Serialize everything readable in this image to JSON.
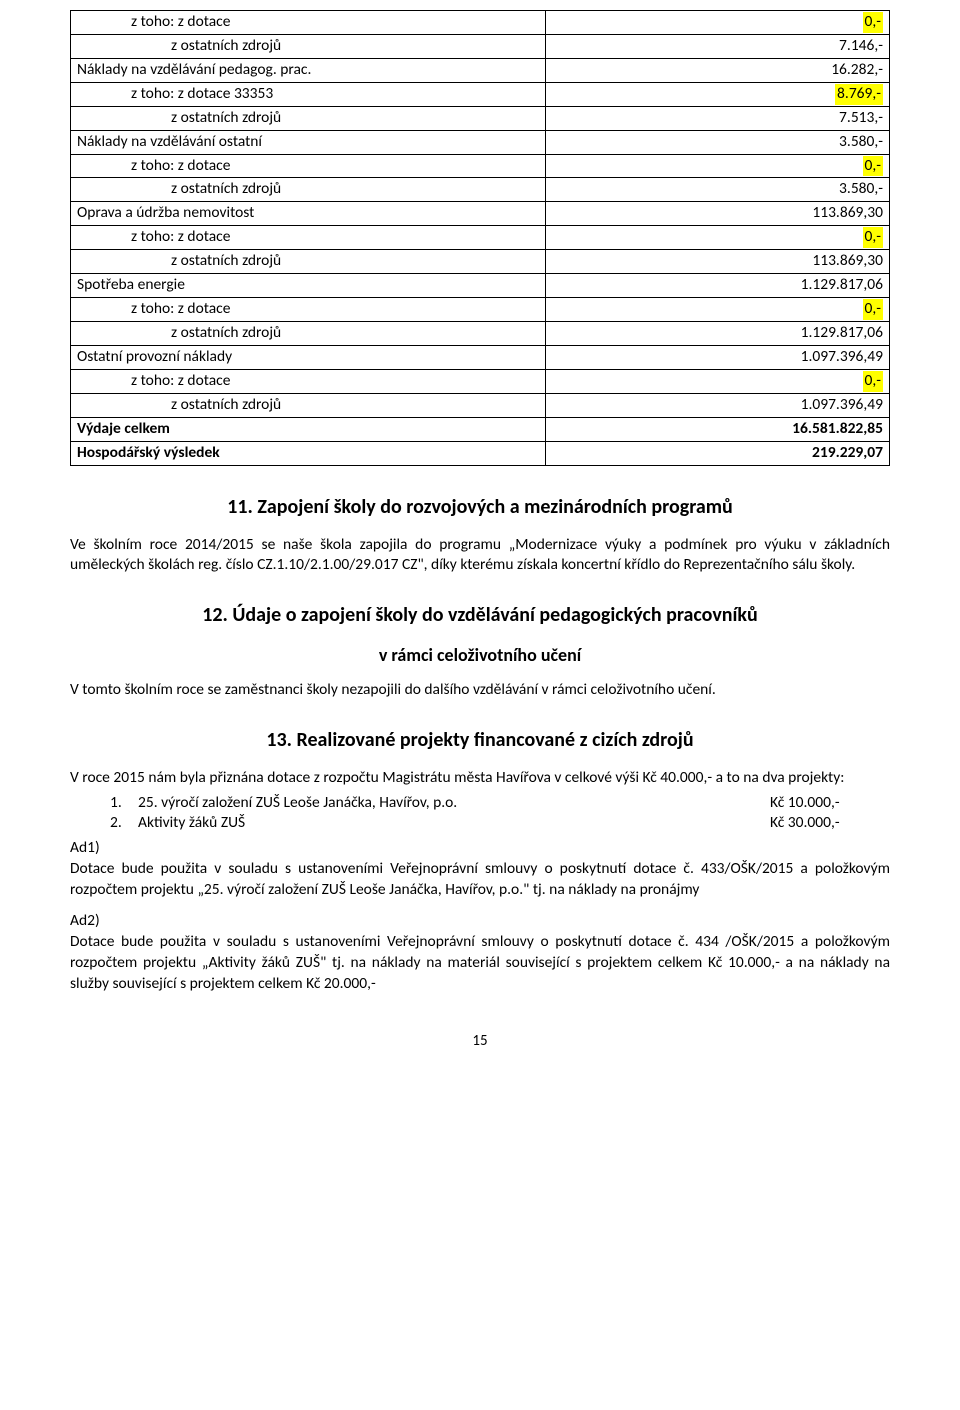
{
  "table": {
    "rows": [
      {
        "label": "z toho: z dotace",
        "value": "0,-",
        "indent": 1,
        "hl": true
      },
      {
        "label": "z ostatních zdrojů",
        "value": "7.146,-",
        "indent": 2
      },
      {
        "label": "Náklady na vzdělávání pedagog. prac.",
        "value": "16.282,-",
        "indent": 0
      },
      {
        "label": "z toho: z dotace 33353",
        "value": "8.769,-",
        "indent": 1,
        "hl": true
      },
      {
        "label": "z ostatních zdrojů",
        "value": "7.513,-",
        "indent": 2
      },
      {
        "label": "Náklady na vzdělávání ostatní",
        "value": "3.580,-",
        "indent": 0
      },
      {
        "label": "z toho: z dotace",
        "value": "0,-",
        "indent": 1,
        "hl": true
      },
      {
        "label": "z ostatních zdrojů",
        "value": "3.580,-",
        "indent": 2
      },
      {
        "label": "Oprava a údržba nemovitost",
        "value": "113.869,30",
        "indent": 0
      },
      {
        "label": "z toho: z dotace",
        "value": "0,-",
        "indent": 1,
        "hl": true
      },
      {
        "label": "z ostatních zdrojů",
        "value": "113.869,30",
        "indent": 2
      },
      {
        "label": "Spotřeba energie",
        "value": "1.129.817,06",
        "indent": 0
      },
      {
        "label": "z toho: z dotace",
        "value": "0,-",
        "indent": 1,
        "hl": true
      },
      {
        "label": "z ostatních zdrojů",
        "value": "1.129.817,06",
        "indent": 2
      },
      {
        "label": "Ostatní provozní náklady",
        "value": "1.097.396,49",
        "indent": 0
      },
      {
        "label": "z toho: z dotace",
        "value": "0,-",
        "indent": 1,
        "hl": true
      },
      {
        "label": "z ostatních zdrojů",
        "value": "1.097.396,49",
        "indent": 2
      },
      {
        "label": "Výdaje celkem",
        "value": "16.581.822,85",
        "indent": 0,
        "bold": true
      },
      {
        "label": "Hospodářský výsledek",
        "value": "219.229,07",
        "indent": 0,
        "bold": true
      }
    ]
  },
  "section11": {
    "title": "11. Zapojení školy do rozvojových a mezinárodních programů",
    "para": "Ve školním roce 2014/2015 se naše škola zapojila do programu „Modernizace výuky a podmínek pro výuku v základních uměleckých školách reg. číslo CZ.1.10/2.1.00/29.017 CZ\", díky kterému získala koncertní křídlo do Reprezentačního sálu školy."
  },
  "section12": {
    "title": "12. Údaje o zapojení školy do vzdělávání pedagogických pracovníků",
    "subtitle": "v rámci celoživotního učení",
    "para": "V tomto školním roce se zaměstnanci školy nezapojili do dalšího vzdělávání v rámci celoživotního učení."
  },
  "section13": {
    "title": "13.  Realizované projekty financované z cizích zdrojů",
    "intro": "V roce 2015 nám byla přiznána dotace z rozpočtu Magistrátu města Havířova v celkové výši Kč 40.000,- a to na dva projekty:",
    "proj": [
      {
        "n": "1.",
        "t": "25. výročí založení ZUŠ Leoše Janáčka, Havířov, p.o.",
        "a": "Kč 10.000,-"
      },
      {
        "n": "2.",
        "t": "Aktivity žáků ZUŠ",
        "a": "Kč 30.000,-"
      }
    ],
    "ad1_label": "Ad1)",
    "ad1": "Dotace bude použita v souladu s ustanoveními Veřejnoprávní smlouvy o poskytnutí dotace č. 433/OŠK/2015 a položkovým rozpočtem projektu „25. výročí založení ZUŠ Leoše Janáčka, Havířov, p.o.\" tj. na náklady na pronájmy",
    "ad2_label": "Ad2)",
    "ad2": "Dotace bude použita v souladu s ustanoveními Veřejnoprávní smlouvy o poskytnutí dotace č. 434 /OŠK/2015 a položkovým rozpočtem projektu „Aktivity žáků ZUŠ\" tj. na náklady na materiál související s projektem celkem Kč 10.000,- a na náklady na služby související s projektem celkem Kč 20.000,-"
  },
  "pagenum": "15"
}
